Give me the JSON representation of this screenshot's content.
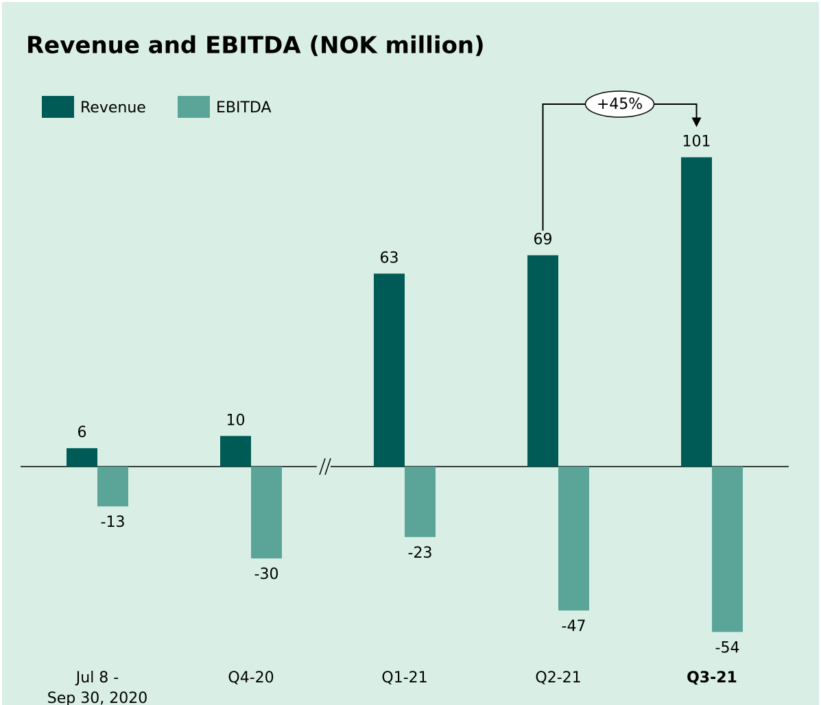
{
  "chart_data": {
    "type": "bar",
    "title": "Revenue and EBITDA (NOK million)",
    "categories": [
      "Jul 8 -\nSep 30, 2020",
      "Q4-20",
      "Q1-21",
      "Q2-21",
      "Q3-21"
    ],
    "emphasized_categories": [
      "Q3-21"
    ],
    "series": [
      {
        "name": "Revenue",
        "color": "#005b56",
        "values": [
          6,
          10,
          63,
          69,
          101
        ]
      },
      {
        "name": "EBITDA",
        "color": "#5aa598",
        "values": [
          -13,
          -30,
          -23,
          -47,
          -54
        ]
      }
    ],
    "annotation": "+45%",
    "legend": "top-left"
  }
}
